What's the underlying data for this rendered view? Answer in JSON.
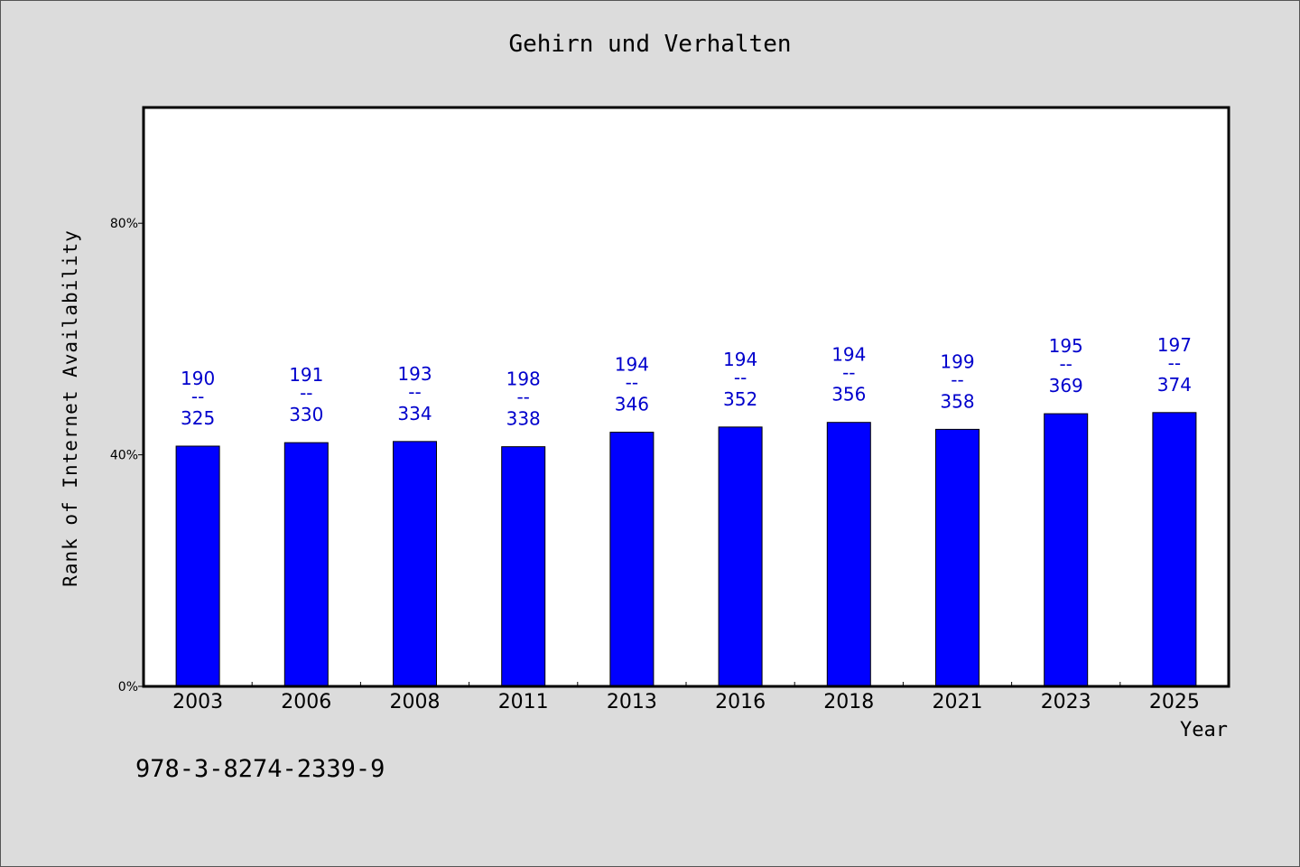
{
  "chart_data": {
    "type": "bar",
    "title": "Gehirn und Verhalten",
    "xlabel": "Year",
    "ylabel": "Rank of Internet Availability",
    "categories": [
      "2003",
      "2006",
      "2008",
      "2011",
      "2013",
      "2016",
      "2018",
      "2021",
      "2023",
      "2025"
    ],
    "values": [
      41.5,
      42.1,
      42.3,
      41.4,
      43.9,
      44.8,
      45.6,
      44.4,
      47.1,
      47.3
    ],
    "labels_top": [
      "190",
      "191",
      "193",
      "198",
      "194",
      "194",
      "194",
      "199",
      "195",
      "197"
    ],
    "labels_bottom": [
      "325",
      "330",
      "334",
      "338",
      "346",
      "352",
      "356",
      "358",
      "369",
      "374"
    ],
    "label_separator": "--",
    "y_ticks": [
      {
        "value": 0,
        "label": "0%"
      },
      {
        "value": 40,
        "label": "40%"
      },
      {
        "value": 80,
        "label": "80%"
      }
    ],
    "ylim": [
      0,
      100
    ],
    "grid": false,
    "bar_color": "#0000ff",
    "label_color": "#0000cc"
  },
  "footer": {
    "code": "978-3-8274-2339-9"
  }
}
